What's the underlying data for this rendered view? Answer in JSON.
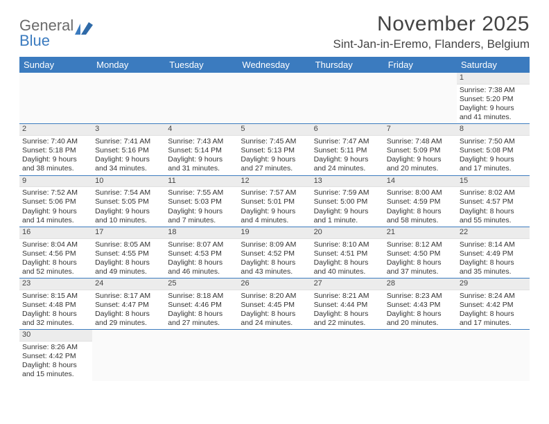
{
  "logo": {
    "part1": "General",
    "part2": "Blue"
  },
  "title": "November 2025",
  "location": "Sint-Jan-in-Eremo, Flanders, Belgium",
  "colors": {
    "header_bg": "#3b7bbf",
    "header_fg": "#ffffff",
    "daynum_bg": "#ececec",
    "row_border": "#3b7bbf",
    "logo_gray": "#6b6b6b",
    "logo_blue": "#3b7bbf",
    "text": "#333333",
    "page_bg": "#ffffff"
  },
  "weekdays": [
    "Sunday",
    "Monday",
    "Tuesday",
    "Wednesday",
    "Thursday",
    "Friday",
    "Saturday"
  ],
  "first_weekday_index": 6,
  "days": [
    {
      "n": 1,
      "sunrise": "7:38 AM",
      "sunset": "5:20 PM",
      "daylight": "9 hours and 41 minutes."
    },
    {
      "n": 2,
      "sunrise": "7:40 AM",
      "sunset": "5:18 PM",
      "daylight": "9 hours and 38 minutes."
    },
    {
      "n": 3,
      "sunrise": "7:41 AM",
      "sunset": "5:16 PM",
      "daylight": "9 hours and 34 minutes."
    },
    {
      "n": 4,
      "sunrise": "7:43 AM",
      "sunset": "5:14 PM",
      "daylight": "9 hours and 31 minutes."
    },
    {
      "n": 5,
      "sunrise": "7:45 AM",
      "sunset": "5:13 PM",
      "daylight": "9 hours and 27 minutes."
    },
    {
      "n": 6,
      "sunrise": "7:47 AM",
      "sunset": "5:11 PM",
      "daylight": "9 hours and 24 minutes."
    },
    {
      "n": 7,
      "sunrise": "7:48 AM",
      "sunset": "5:09 PM",
      "daylight": "9 hours and 20 minutes."
    },
    {
      "n": 8,
      "sunrise": "7:50 AM",
      "sunset": "5:08 PM",
      "daylight": "9 hours and 17 minutes."
    },
    {
      "n": 9,
      "sunrise": "7:52 AM",
      "sunset": "5:06 PM",
      "daylight": "9 hours and 14 minutes."
    },
    {
      "n": 10,
      "sunrise": "7:54 AM",
      "sunset": "5:05 PM",
      "daylight": "9 hours and 10 minutes."
    },
    {
      "n": 11,
      "sunrise": "7:55 AM",
      "sunset": "5:03 PM",
      "daylight": "9 hours and 7 minutes."
    },
    {
      "n": 12,
      "sunrise": "7:57 AM",
      "sunset": "5:01 PM",
      "daylight": "9 hours and 4 minutes."
    },
    {
      "n": 13,
      "sunrise": "7:59 AM",
      "sunset": "5:00 PM",
      "daylight": "9 hours and 1 minute."
    },
    {
      "n": 14,
      "sunrise": "8:00 AM",
      "sunset": "4:59 PM",
      "daylight": "8 hours and 58 minutes."
    },
    {
      "n": 15,
      "sunrise": "8:02 AM",
      "sunset": "4:57 PM",
      "daylight": "8 hours and 55 minutes."
    },
    {
      "n": 16,
      "sunrise": "8:04 AM",
      "sunset": "4:56 PM",
      "daylight": "8 hours and 52 minutes."
    },
    {
      "n": 17,
      "sunrise": "8:05 AM",
      "sunset": "4:55 PM",
      "daylight": "8 hours and 49 minutes."
    },
    {
      "n": 18,
      "sunrise": "8:07 AM",
      "sunset": "4:53 PM",
      "daylight": "8 hours and 46 minutes."
    },
    {
      "n": 19,
      "sunrise": "8:09 AM",
      "sunset": "4:52 PM",
      "daylight": "8 hours and 43 minutes."
    },
    {
      "n": 20,
      "sunrise": "8:10 AM",
      "sunset": "4:51 PM",
      "daylight": "8 hours and 40 minutes."
    },
    {
      "n": 21,
      "sunrise": "8:12 AM",
      "sunset": "4:50 PM",
      "daylight": "8 hours and 37 minutes."
    },
    {
      "n": 22,
      "sunrise": "8:14 AM",
      "sunset": "4:49 PM",
      "daylight": "8 hours and 35 minutes."
    },
    {
      "n": 23,
      "sunrise": "8:15 AM",
      "sunset": "4:48 PM",
      "daylight": "8 hours and 32 minutes."
    },
    {
      "n": 24,
      "sunrise": "8:17 AM",
      "sunset": "4:47 PM",
      "daylight": "8 hours and 29 minutes."
    },
    {
      "n": 25,
      "sunrise": "8:18 AM",
      "sunset": "4:46 PM",
      "daylight": "8 hours and 27 minutes."
    },
    {
      "n": 26,
      "sunrise": "8:20 AM",
      "sunset": "4:45 PM",
      "daylight": "8 hours and 24 minutes."
    },
    {
      "n": 27,
      "sunrise": "8:21 AM",
      "sunset": "4:44 PM",
      "daylight": "8 hours and 22 minutes."
    },
    {
      "n": 28,
      "sunrise": "8:23 AM",
      "sunset": "4:43 PM",
      "daylight": "8 hours and 20 minutes."
    },
    {
      "n": 29,
      "sunrise": "8:24 AM",
      "sunset": "4:42 PM",
      "daylight": "8 hours and 17 minutes."
    },
    {
      "n": 30,
      "sunrise": "8:26 AM",
      "sunset": "4:42 PM",
      "daylight": "8 hours and 15 minutes."
    }
  ],
  "labels": {
    "sunrise": "Sunrise:",
    "sunset": "Sunset:",
    "daylight": "Daylight:"
  }
}
